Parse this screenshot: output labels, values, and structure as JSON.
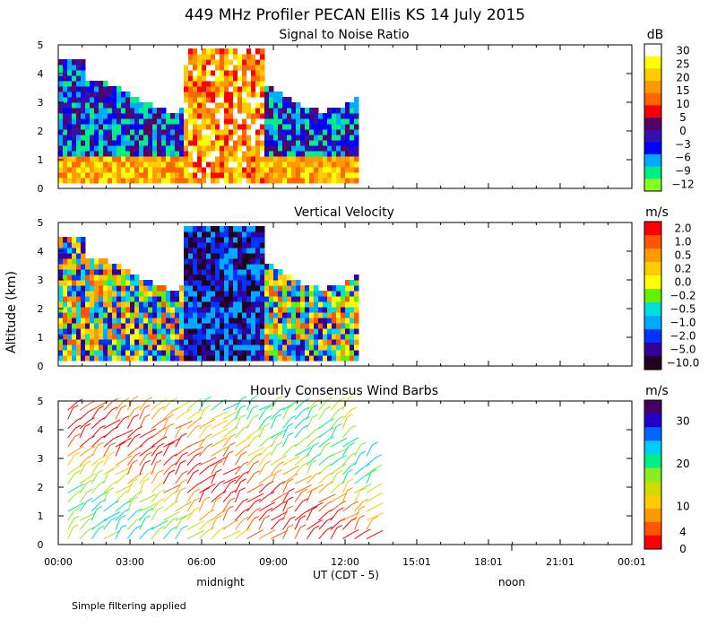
{
  "figure": {
    "title": "449 MHz Profiler PECAN Ellis KS 14 July 2015",
    "ylabel": "Altitude (km)",
    "xlabel": "UT  (CDT - 5)",
    "x_ticks": [
      "00:00",
      "03:00",
      "06:00",
      "09:00",
      "12:00",
      "15:01",
      "18:01",
      "21:01",
      "00:01"
    ],
    "local_markers": [
      "midnight",
      "noon"
    ],
    "footnote": "Simple filtering applied"
  },
  "chart_data": [
    {
      "type": "heatmap",
      "title": "Signal to Noise Ratio",
      "ylabel": "Altitude (km)",
      "ylim": [
        0,
        5
      ],
      "y_ticks": [
        "0",
        "1",
        "2",
        "3",
        "4",
        "5"
      ],
      "xlim_hours": [
        0,
        24
      ],
      "data_extent_hours": [
        0,
        12.5
      ],
      "colorbar": {
        "unit": "dB",
        "labels": [
          "30",
          "25",
          "20",
          "15",
          "10",
          "5",
          "0",
          "−3",
          "−6",
          "−9",
          "−12"
        ],
        "colors": [
          "#ffffff",
          "#ffff00",
          "#ffcc00",
          "#ff9900",
          "#ff6600",
          "#ff0000",
          "#550066",
          "#3311aa",
          "#0000ff",
          "#00aaff",
          "#00ee88",
          "#88ff22"
        ]
      }
    },
    {
      "type": "heatmap",
      "title": "Vertical Velocity",
      "ylabel": "Altitude (km)",
      "ylim": [
        0,
        5
      ],
      "y_ticks": [
        "0",
        "1",
        "2",
        "3",
        "4",
        "5"
      ],
      "xlim_hours": [
        0,
        24
      ],
      "data_extent_hours": [
        0,
        12.5
      ],
      "colorbar": {
        "unit": "m/s",
        "labels": [
          "2.0",
          "1.0",
          "0.5",
          "0.2",
          "0.0",
          "−0.2",
          "−0.5",
          "−1.0",
          "−2.0",
          "−5.0",
          "−10.0"
        ],
        "colors": [
          "#ff0000",
          "#ff5500",
          "#ff9900",
          "#ffcc00",
          "#ffff00",
          "#66ee00",
          "#00dddd",
          "#00aaff",
          "#0033ff",
          "#330099",
          "#220022"
        ]
      }
    },
    {
      "type": "wind_barbs",
      "title": "Hourly Consensus Wind Barbs",
      "ylabel": "Altitude (km)",
      "ylim": [
        0,
        5
      ],
      "y_ticks": [
        "0",
        "1",
        "2",
        "3",
        "4",
        "5"
      ],
      "xlim_hours": [
        0,
        24
      ],
      "data_extent_hours": [
        0,
        13.3
      ],
      "colorbar": {
        "unit": "m/s",
        "labels": [
          "30",
          "20",
          "10",
          "4",
          "0"
        ],
        "label_values": [
          30,
          20,
          10,
          4,
          0
        ],
        "range": [
          0,
          35
        ],
        "colors": [
          "#440066",
          "#2200cc",
          "#0066ff",
          "#00ccff",
          "#00ee88",
          "#88ee22",
          "#ccdd00",
          "#ffcc00",
          "#ff9900",
          "#ff5500",
          "#ff0000"
        ]
      }
    }
  ]
}
